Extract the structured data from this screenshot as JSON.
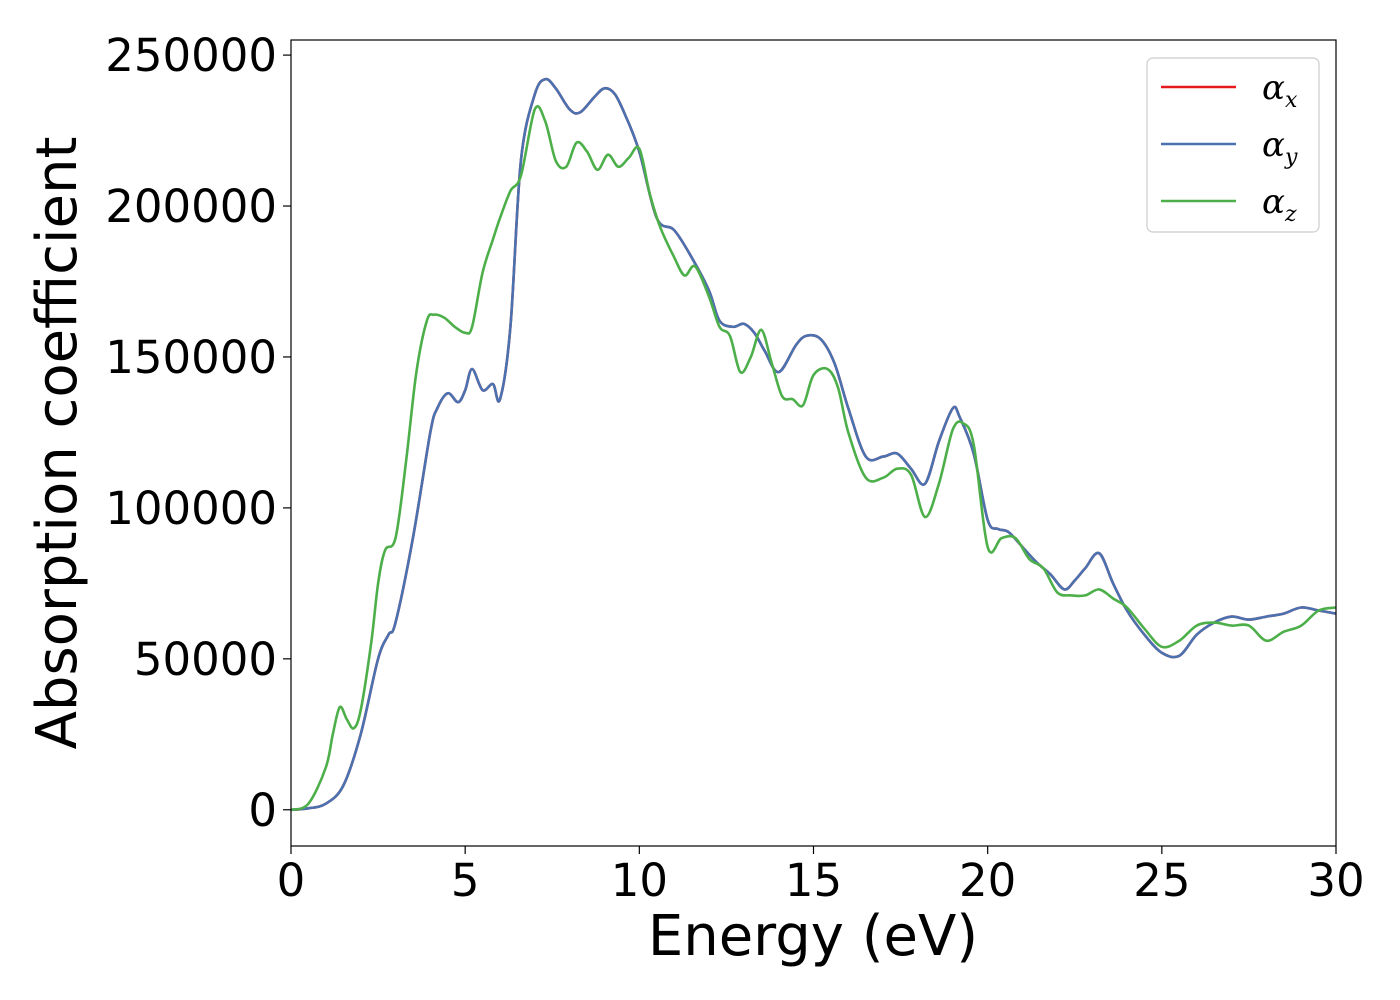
{
  "chart_data": {
    "type": "line",
    "title": "",
    "xlabel": "Energy (eV)",
    "ylabel": "Absorption coefficient",
    "xlim": [
      0,
      30
    ],
    "ylim": [
      -12000,
      255000
    ],
    "xticks": [
      0,
      5,
      10,
      15,
      20,
      25,
      30
    ],
    "yticks": [
      0,
      50000,
      100000,
      150000,
      200000,
      250000
    ],
    "grid": false,
    "legend_position": "top-right",
    "series": [
      {
        "name": "α",
        "subscript": "x",
        "color": "#e41a1c",
        "x": [
          0,
          0.5,
          1.0,
          1.5,
          2.0,
          2.5,
          2.8,
          3.0,
          3.5,
          4.0,
          4.2,
          4.5,
          4.8,
          5.0,
          5.2,
          5.5,
          5.8,
          6.0,
          6.3,
          6.6,
          7.0,
          7.3,
          7.6,
          8.0,
          8.3,
          8.7,
          9.0,
          9.3,
          9.6,
          10.0,
          10.5,
          11.0,
          11.5,
          12.0,
          12.3,
          12.7,
          13.0,
          13.3,
          13.6,
          14.0,
          14.5,
          14.8,
          15.2,
          15.6,
          16.0,
          16.5,
          17.0,
          17.4,
          17.8,
          18.2,
          18.6,
          19.0,
          19.2,
          19.6,
          20.0,
          20.3,
          20.6,
          21.0,
          21.4,
          21.8,
          22.2,
          22.5,
          22.8,
          23.2,
          23.6,
          24.0,
          24.5,
          25.0,
          25.5,
          26.0,
          26.5,
          27.0,
          27.5,
          28.0,
          28.5,
          29.0,
          29.5,
          30.0
        ],
        "values": [
          0,
          500,
          2000,
          8000,
          25000,
          50000,
          58000,
          62000,
          90000,
          125000,
          133000,
          138000,
          135000,
          139000,
          146000,
          139000,
          141000,
          136000,
          160000,
          215000,
          237000,
          242000,
          239000,
          232000,
          231000,
          236000,
          239000,
          237000,
          230000,
          218000,
          196000,
          192000,
          183000,
          172000,
          162000,
          160000,
          161000,
          158000,
          152000,
          145000,
          154000,
          157000,
          156000,
          148000,
          133000,
          117000,
          117000,
          118000,
          113000,
          108000,
          122000,
          133000,
          130000,
          118000,
          96000,
          93000,
          92000,
          87000,
          82000,
          78000,
          73000,
          76000,
          80000,
          85000,
          75000,
          66000,
          58000,
          52000,
          51000,
          58000,
          62000,
          64000,
          63000,
          64000,
          65000,
          67000,
          66000,
          65000
        ]
      },
      {
        "name": "α",
        "subscript": "y",
        "color": "#4a72b0",
        "x": [
          0,
          0.5,
          1.0,
          1.5,
          2.0,
          2.5,
          2.8,
          3.0,
          3.5,
          4.0,
          4.2,
          4.5,
          4.8,
          5.0,
          5.2,
          5.5,
          5.8,
          6.0,
          6.3,
          6.6,
          7.0,
          7.3,
          7.6,
          8.0,
          8.3,
          8.7,
          9.0,
          9.3,
          9.6,
          10.0,
          10.5,
          11.0,
          11.5,
          12.0,
          12.3,
          12.7,
          13.0,
          13.3,
          13.6,
          14.0,
          14.5,
          14.8,
          15.2,
          15.6,
          16.0,
          16.5,
          17.0,
          17.4,
          17.8,
          18.2,
          18.6,
          19.0,
          19.2,
          19.6,
          20.0,
          20.3,
          20.6,
          21.0,
          21.4,
          21.8,
          22.2,
          22.5,
          22.8,
          23.2,
          23.6,
          24.0,
          24.5,
          25.0,
          25.5,
          26.0,
          26.5,
          27.0,
          27.5,
          28.0,
          28.5,
          29.0,
          29.5,
          30.0
        ],
        "values": [
          0,
          500,
          2000,
          8000,
          25000,
          50000,
          58000,
          62000,
          90000,
          125000,
          133000,
          138000,
          135000,
          139000,
          146000,
          139000,
          141000,
          136000,
          160000,
          215000,
          237000,
          242000,
          239000,
          232000,
          231000,
          236000,
          239000,
          237000,
          230000,
          218000,
          196000,
          192000,
          183000,
          172000,
          162000,
          160000,
          161000,
          158000,
          152000,
          145000,
          154000,
          157000,
          156000,
          148000,
          133000,
          117000,
          117000,
          118000,
          113000,
          108000,
          122000,
          133000,
          130000,
          118000,
          96000,
          93000,
          92000,
          87000,
          82000,
          78000,
          73000,
          76000,
          80000,
          85000,
          75000,
          66000,
          58000,
          52000,
          51000,
          58000,
          62000,
          64000,
          63000,
          64000,
          65000,
          67000,
          66000,
          65000
        ]
      },
      {
        "name": "α",
        "subscript": "z",
        "color": "#4daf4a",
        "x": [
          0,
          0.5,
          1.0,
          1.2,
          1.4,
          1.6,
          1.8,
          2.0,
          2.3,
          2.5,
          2.7,
          3.0,
          3.3,
          3.6,
          3.9,
          4.1,
          4.4,
          4.7,
          5.0,
          5.2,
          5.5,
          5.8,
          6.0,
          6.3,
          6.6,
          7.0,
          7.3,
          7.6,
          7.9,
          8.2,
          8.5,
          8.8,
          9.1,
          9.4,
          9.7,
          10.0,
          10.3,
          10.6,
          11.0,
          11.3,
          11.6,
          12.0,
          12.3,
          12.6,
          12.9,
          13.2,
          13.5,
          13.8,
          14.1,
          14.4,
          14.7,
          15.0,
          15.4,
          15.7,
          16.0,
          16.5,
          17.0,
          17.4,
          17.8,
          18.2,
          18.6,
          19.0,
          19.3,
          19.6,
          20.0,
          20.4,
          20.8,
          21.2,
          21.6,
          22.0,
          22.4,
          22.8,
          23.2,
          23.6,
          24.0,
          24.5,
          25.0,
          25.5,
          26.0,
          26.5,
          27.0,
          27.5,
          28.0,
          28.5,
          29.0,
          29.5,
          30.0
        ],
        "values": [
          0,
          2000,
          14000,
          25000,
          34000,
          30000,
          27000,
          33000,
          55000,
          75000,
          86000,
          90000,
          115000,
          145000,
          162000,
          164000,
          163000,
          160000,
          158000,
          160000,
          178000,
          189000,
          196000,
          205000,
          210000,
          232000,
          228000,
          215000,
          213000,
          221000,
          218000,
          212000,
          217000,
          213000,
          216000,
          219000,
          204000,
          193000,
          183000,
          177000,
          180000,
          170000,
          160000,
          157000,
          145000,
          150000,
          159000,
          148000,
          137000,
          136000,
          134000,
          144000,
          146000,
          140000,
          125000,
          110000,
          110000,
          113000,
          111000,
          97000,
          108000,
          126000,
          128000,
          121000,
          87000,
          90000,
          90000,
          83000,
          80000,
          72000,
          71000,
          71000,
          73000,
          70000,
          67000,
          60000,
          54000,
          56000,
          61000,
          62000,
          61000,
          61000,
          56000,
          59000,
          61000,
          66000,
          67000
        ]
      }
    ]
  }
}
